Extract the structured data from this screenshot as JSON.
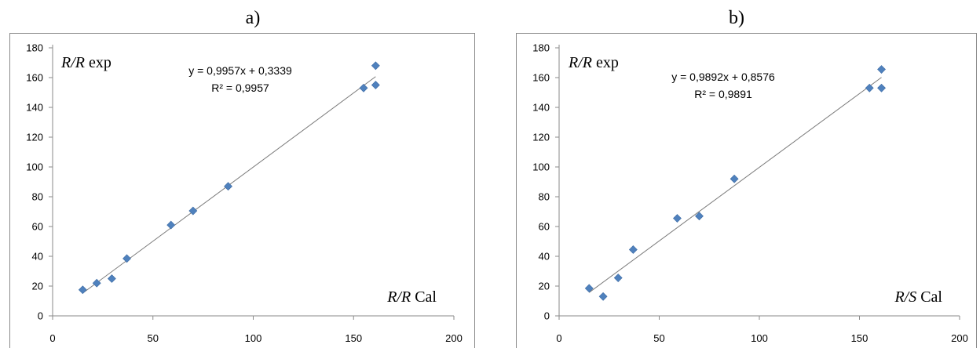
{
  "chart_data": [
    {
      "type": "scatter",
      "panel_label": "a)",
      "ylabel": {
        "italic": "R/R",
        "rest": " exp"
      },
      "xlabel": {
        "italic": "R/R",
        "rest": " Cal"
      },
      "xlim": [
        0,
        200
      ],
      "ylim": [
        0,
        180
      ],
      "x_ticks": [
        0,
        50,
        100,
        150,
        200
      ],
      "y_ticks": [
        0,
        20,
        40,
        60,
        80,
        100,
        120,
        140,
        160,
        180
      ],
      "grid": false,
      "marker_color": "#4f81bd",
      "trendline": {
        "slope": 0.9957,
        "intercept": 0.3339,
        "x_range": [
          15,
          161
        ]
      },
      "equation": "y = 0,9957x + 0,3339",
      "r_squared": "R² = 0,9957",
      "points": [
        {
          "x": 15,
          "y": 17.5
        },
        {
          "x": 22,
          "y": 22
        },
        {
          "x": 29.5,
          "y": 25
        },
        {
          "x": 37,
          "y": 38.5
        },
        {
          "x": 59,
          "y": 61
        },
        {
          "x": 70,
          "y": 70.5
        },
        {
          "x": 87.5,
          "y": 87
        },
        {
          "x": 155,
          "y": 153
        },
        {
          "x": 161,
          "y": 155
        },
        {
          "x": 161,
          "y": 168
        }
      ]
    },
    {
      "type": "scatter",
      "panel_label": "b)",
      "ylabel": {
        "italic": "R/R",
        "rest": " exp"
      },
      "xlabel": {
        "italic": "R/S",
        "rest": " Cal"
      },
      "xlim": [
        0,
        200
      ],
      "ylim": [
        0,
        180
      ],
      "x_ticks": [
        0,
        50,
        100,
        150,
        200
      ],
      "y_ticks": [
        0,
        20,
        40,
        60,
        80,
        100,
        120,
        140,
        160,
        180
      ],
      "grid": false,
      "marker_color": "#4f81bd",
      "trendline": {
        "slope": 0.9892,
        "intercept": 0.8576,
        "x_range": [
          15,
          161
        ]
      },
      "equation": "y = 0,9892x + 0,8576",
      "r_squared": "R² = 0,9891",
      "points": [
        {
          "x": 15,
          "y": 18.5
        },
        {
          "x": 22,
          "y": 13
        },
        {
          "x": 29.5,
          "y": 25.5
        },
        {
          "x": 37,
          "y": 44.5
        },
        {
          "x": 59,
          "y": 65.5
        },
        {
          "x": 70,
          "y": 67
        },
        {
          "x": 87.5,
          "y": 92
        },
        {
          "x": 155,
          "y": 153
        },
        {
          "x": 161,
          "y": 153
        },
        {
          "x": 161,
          "y": 165.5
        }
      ]
    }
  ]
}
